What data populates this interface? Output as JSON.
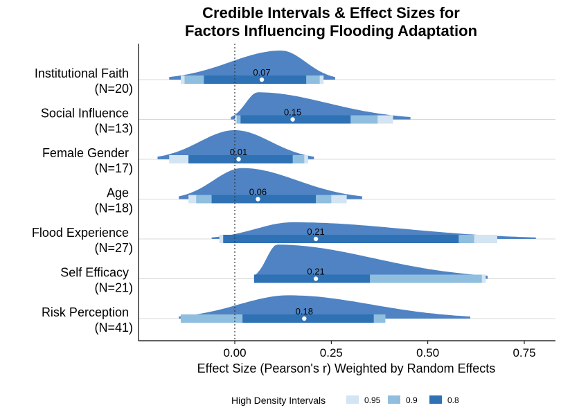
{
  "chart_data": {
    "type": "ridgeline-interval",
    "title_lines": [
      "Credible Intervals & Effect Sizes for",
      "Factors Influencing Flooding Adaptation"
    ],
    "xlabel": "Effect Size (Pearson's r) Weighted by Random Effects",
    "xlim": [
      -0.25,
      0.8
    ],
    "xticks": [
      0.0,
      0.25,
      0.5,
      0.75
    ],
    "xtick_labels": [
      "0.00",
      "0.25",
      "0.50",
      "0.75"
    ],
    "reference_line": 0.0,
    "legend": {
      "title": "High Density Intervals",
      "position": "bottom",
      "items": [
        {
          "label": "0.95",
          "color": "#d3e4f3"
        },
        {
          "label": "0.9",
          "color": "#8fbedf"
        },
        {
          "label": "0.8",
          "color": "#2f71b5"
        }
      ]
    },
    "density_color": "#4f83c3",
    "point_color": "#ffffff",
    "categories": [
      {
        "line1": "Institutional Faith",
        "line2": "(N=20)",
        "median": 0.07,
        "median_label": "0.07",
        "density_range": [
          -0.17,
          0.26
        ],
        "peak": 0.12,
        "height": 0.75,
        "hdi95": [
          -0.14,
          0.23
        ],
        "hdi90": [
          -0.13,
          0.22
        ],
        "hdi80": [
          -0.08,
          0.185
        ]
      },
      {
        "line1": "Social Influence",
        "line2": "(N=13)",
        "median": 0.15,
        "median_label": "0.15",
        "density_range": [
          -0.01,
          0.455
        ],
        "peak": 0.06,
        "height": 0.7,
        "hdi95": [
          0.0,
          0.41
        ],
        "hdi90": [
          0.005,
          0.37
        ],
        "hdi80": [
          0.015,
          0.3
        ]
      },
      {
        "line1": "Female Gender",
        "line2": "(N=17)",
        "median": 0.01,
        "median_label": "0.01",
        "density_range": [
          -0.2,
          0.205
        ],
        "peak": 0.0,
        "height": 0.75,
        "hdi95": [
          -0.17,
          0.19
        ],
        "hdi90": [
          -0.12,
          0.18
        ],
        "hdi80": [
          -0.12,
          0.15
        ]
      },
      {
        "line1": "Age",
        "line2": "(N=18)",
        "median": 0.06,
        "median_label": "0.06",
        "density_range": [
          -0.145,
          0.33
        ],
        "peak": 0.02,
        "height": 0.8,
        "hdi95": [
          -0.12,
          0.29
        ],
        "hdi90": [
          -0.1,
          0.25
        ],
        "hdi80": [
          -0.06,
          0.21
        ]
      },
      {
        "line1": "Flood Experience",
        "line2": "(N=27)",
        "median": 0.21,
        "median_label": "0.21",
        "density_range": [
          -0.06,
          0.78
        ],
        "peak": 0.15,
        "height": 0.43,
        "hdi95": [
          -0.04,
          0.68
        ],
        "hdi90": [
          -0.03,
          0.62
        ],
        "hdi80": [
          -0.03,
          0.58
        ]
      },
      {
        "line1": "Self Efficacy",
        "line2": "(N=21)",
        "median": 0.21,
        "median_label": "0.21",
        "density_range": [
          0.05,
          0.655
        ],
        "peak": 0.11,
        "height": 0.88,
        "hdi95": [
          0.05,
          0.65
        ],
        "hdi90": [
          0.05,
          0.64
        ],
        "hdi80": [
          0.05,
          0.35
        ]
      },
      {
        "line1": "Risk Perception",
        "line2": "(N=41)",
        "median": 0.18,
        "median_label": "0.18",
        "density_range": [
          -0.145,
          0.61
        ],
        "peak": 0.14,
        "height": 0.6,
        "hdi95": [
          -0.14,
          0.39
        ],
        "hdi90": [
          -0.14,
          0.39
        ],
        "hdi80": [
          0.02,
          0.36
        ]
      }
    ]
  }
}
